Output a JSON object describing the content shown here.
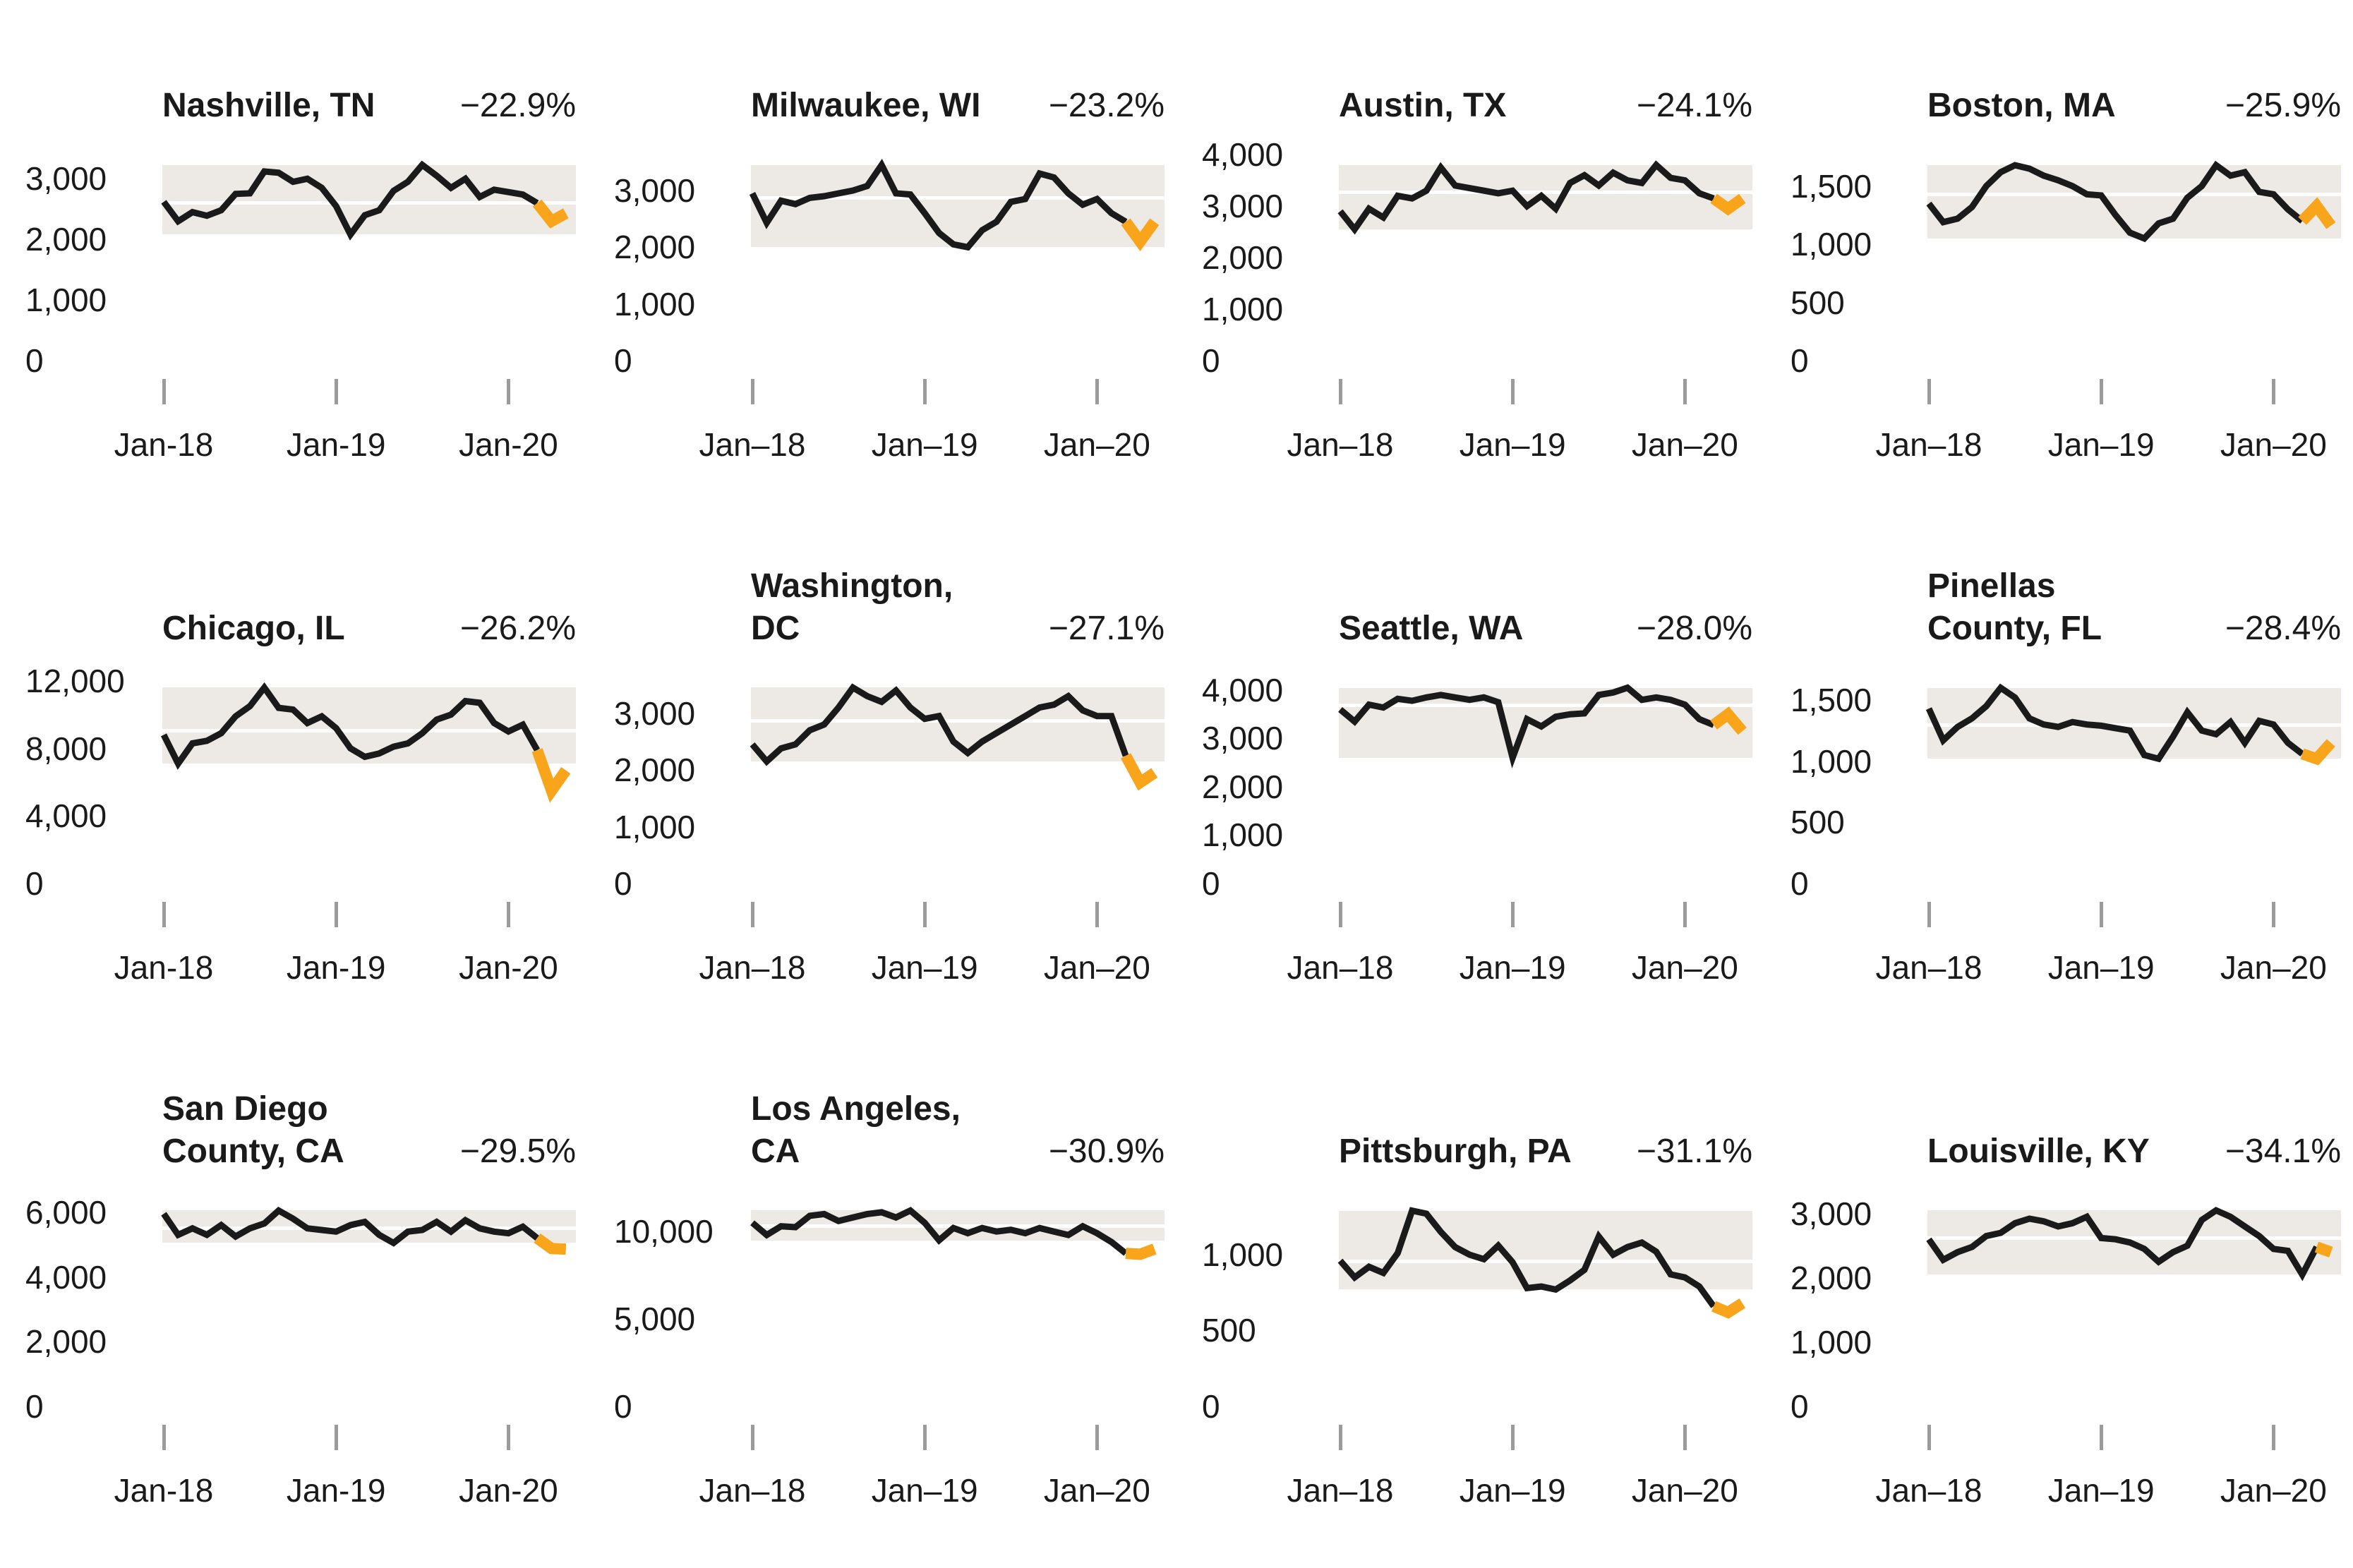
{
  "page": {
    "background": "#ffffff",
    "colors": {
      "line_black": "#1a1a1a",
      "highlight_orange": "#f9a51b",
      "range_band_gray": "#edeae5",
      "average_line_white": "#ffffff",
      "axis_tick_gray": "#9b9b9b",
      "text": "#1a1a1a"
    }
  },
  "chart_data": [
    {
      "type": "line",
      "title": "Nashville, TN",
      "title_display": "Nashville, TN",
      "change_label": "−22.9%",
      "x_start": "Jan-2018",
      "x_interval": "monthly",
      "x_tick_labels": [
        "Jan-18",
        "Jan-19",
        "Jan-20"
      ],
      "x_tick_indices": [
        0,
        12,
        24
      ],
      "values": [
        2620,
        2300,
        2450,
        2390,
        2480,
        2750,
        2760,
        3120,
        3100,
        2950,
        3000,
        2850,
        2550,
        2080,
        2400,
        2480,
        2800,
        2950,
        3230,
        3050,
        2850,
        3000,
        2700,
        2820,
        2780,
        2740,
        2600,
        2300,
        2430
      ],
      "highlight_from_index": 26,
      "band_min": 2080,
      "band_max": 3230,
      "baseline": 2610,
      "ylim": [
        0,
        3330
      ],
      "y_ticks": [
        {
          "value": 3000,
          "label": "3,000"
        },
        {
          "value": 2000,
          "label": "2,000"
        },
        {
          "value": 1000,
          "label": "1,000"
        },
        {
          "value": 0,
          "label": "0"
        }
      ]
    },
    {
      "type": "line",
      "title": "Milwaukee, WI",
      "title_display": "Milwaukee, WI",
      "change_label": "−23.2%",
      "x_start": "Jan-2018",
      "x_interval": "monthly",
      "x_tick_labels": [
        "Jan–18",
        "Jan–19",
        "Jan–20"
      ],
      "x_tick_indices": [
        0,
        12,
        24
      ],
      "values": [
        2950,
        2430,
        2820,
        2760,
        2870,
        2900,
        2950,
        3000,
        3080,
        3450,
        2950,
        2930,
        2600,
        2250,
        2050,
        2000,
        2300,
        2450,
        2800,
        2850,
        3300,
        3230,
        2950,
        2750,
        2850,
        2600,
        2450,
        2100,
        2450
      ],
      "highlight_from_index": 26,
      "band_min": 2000,
      "band_max": 3450,
      "baseline": 2870,
      "ylim": [
        0,
        3560
      ],
      "y_ticks": [
        {
          "value": 3000,
          "label": "3,000"
        },
        {
          "value": 2000,
          "label": "2,000"
        },
        {
          "value": 1000,
          "label": "1,000"
        },
        {
          "value": 0,
          "label": "0"
        }
      ]
    },
    {
      "type": "line",
      "title": "Austin, TX",
      "title_display": "Austin, TX",
      "change_label": "−24.1%",
      "x_start": "Jan-2018",
      "x_interval": "monthly",
      "x_tick_labels": [
        "Jan–18",
        "Jan–19",
        "Jan–20"
      ],
      "x_tick_indices": [
        0,
        12,
        24
      ],
      "values": [
        2900,
        2550,
        2950,
        2780,
        3200,
        3150,
        3300,
        3750,
        3400,
        3350,
        3300,
        3250,
        3300,
        3000,
        3200,
        2950,
        3450,
        3600,
        3400,
        3650,
        3500,
        3450,
        3800,
        3550,
        3500,
        3250,
        3150,
        2950,
        3150
      ],
      "highlight_from_index": 26,
      "band_min": 2550,
      "band_max": 3800,
      "baseline": 3280,
      "ylim": [
        0,
        3920
      ],
      "y_ticks": [
        {
          "value": 4000,
          "label": "4,000"
        },
        {
          "value": 3000,
          "label": "3,000"
        },
        {
          "value": 2000,
          "label": "2,000"
        },
        {
          "value": 1000,
          "label": "1,000"
        },
        {
          "value": 0,
          "label": "0"
        }
      ]
    },
    {
      "type": "line",
      "title": "Boston, MA",
      "title_display": "Boston, MA",
      "change_label": "−25.9%",
      "x_start": "Jan-2018",
      "x_interval": "monthly",
      "x_tick_labels": [
        "Jan–18",
        "Jan–19",
        "Jan–20"
      ],
      "x_tick_indices": [
        0,
        12,
        24
      ],
      "values": [
        1350,
        1190,
        1220,
        1320,
        1500,
        1620,
        1680,
        1650,
        1590,
        1550,
        1500,
        1430,
        1420,
        1250,
        1100,
        1050,
        1180,
        1220,
        1400,
        1500,
        1680,
        1590,
        1620,
        1450,
        1430,
        1300,
        1200,
        1330,
        1160
      ],
      "highlight_from_index": 26,
      "band_min": 1050,
      "band_max": 1680,
      "baseline": 1430,
      "ylim": [
        0,
        1735
      ],
      "y_ticks": [
        {
          "value": 1500,
          "label": "1,500"
        },
        {
          "value": 1000,
          "label": "1,000"
        },
        {
          "value": 500,
          "label": "500"
        },
        {
          "value": 0,
          "label": "0"
        }
      ]
    },
    {
      "type": "line",
      "title": "Chicago, IL",
      "title_display": "Chicago, IL",
      "change_label": "−26.2%",
      "x_start": "Jan-2018",
      "x_interval": "monthly",
      "x_tick_labels": [
        "Jan-18",
        "Jan-19",
        "Jan-20"
      ],
      "x_tick_indices": [
        0,
        12,
        24
      ],
      "values": [
        8800,
        7100,
        8300,
        8450,
        8900,
        9900,
        10500,
        11600,
        10400,
        10300,
        9500,
        9900,
        9200,
        8000,
        7500,
        7700,
        8100,
        8300,
        8900,
        9700,
        10000,
        10800,
        10700,
        9500,
        9000,
        9400,
        7900,
        5500,
        6700
      ],
      "highlight_from_index": 26,
      "band_min": 7100,
      "band_max": 11600,
      "baseline": 9050,
      "ylim": [
        0,
        11950
      ],
      "y_ticks": [
        {
          "value": 12000,
          "label": "12,000"
        },
        {
          "value": 8000,
          "label": "8,000"
        },
        {
          "value": 4000,
          "label": "4,000"
        },
        {
          "value": 0,
          "label": "0"
        }
      ]
    },
    {
      "type": "line",
      "title": "Washington, DC",
      "title_display": "Washington,\nDC",
      "change_label": "−27.1%",
      "x_start": "Jan-2018",
      "x_interval": "monthly",
      "x_tick_labels": [
        "Jan–18",
        "Jan–19",
        "Jan–20"
      ],
      "x_tick_indices": [
        0,
        12,
        24
      ],
      "values": [
        2450,
        2150,
        2380,
        2450,
        2700,
        2800,
        3100,
        3450,
        3300,
        3200,
        3400,
        3100,
        2900,
        2950,
        2500,
        2300,
        2500,
        2650,
        2800,
        2950,
        3100,
        3150,
        3300,
        3050,
        2950,
        2950,
        2250,
        1780,
        1950
      ],
      "highlight_from_index": 26,
      "band_min": 2150,
      "band_max": 3450,
      "baseline": 2870,
      "ylim": [
        0,
        3555
      ],
      "y_ticks": [
        {
          "value": 3000,
          "label": "3,000"
        },
        {
          "value": 2000,
          "label": "2,000"
        },
        {
          "value": 1000,
          "label": "1,000"
        },
        {
          "value": 0,
          "label": "0"
        }
      ]
    },
    {
      "type": "line",
      "title": "Seattle, WA",
      "title_display": "Seattle, WA",
      "change_label": "−28.0%",
      "x_start": "Jan-2018",
      "x_interval": "monthly",
      "x_tick_labels": [
        "Jan–18",
        "Jan–19",
        "Jan–20"
      ],
      "x_tick_indices": [
        0,
        12,
        24
      ],
      "values": [
        3600,
        3350,
        3700,
        3640,
        3820,
        3780,
        3850,
        3900,
        3850,
        3800,
        3850,
        3750,
        2600,
        3400,
        3250,
        3450,
        3500,
        3520,
        3900,
        3950,
        4050,
        3800,
        3850,
        3800,
        3700,
        3400,
        3280,
        3500,
        3150
      ],
      "highlight_from_index": 26,
      "band_min": 2600,
      "band_max": 4050,
      "baseline": 3700,
      "ylim": [
        0,
        4175
      ],
      "y_ticks": [
        {
          "value": 4000,
          "label": "4,000"
        },
        {
          "value": 3000,
          "label": "3,000"
        },
        {
          "value": 2000,
          "label": "2,000"
        },
        {
          "value": 1000,
          "label": "1,000"
        },
        {
          "value": 0,
          "label": "0"
        }
      ]
    },
    {
      "type": "line",
      "title": "Pinellas County, FL",
      "title_display": "Pinellas\nCounty, FL",
      "change_label": "−28.4%",
      "x_start": "Jan-2018",
      "x_interval": "monthly",
      "x_tick_labels": [
        "Jan–18",
        "Jan–19",
        "Jan–20"
      ],
      "x_tick_indices": [
        0,
        12,
        24
      ],
      "values": [
        1430,
        1170,
        1280,
        1350,
        1450,
        1600,
        1520,
        1350,
        1300,
        1280,
        1320,
        1300,
        1290,
        1270,
        1250,
        1050,
        1020,
        1200,
        1400,
        1250,
        1220,
        1320,
        1150,
        1330,
        1300,
        1150,
        1060,
        1020,
        1150
      ],
      "highlight_from_index": 26,
      "band_min": 1020,
      "band_max": 1600,
      "baseline": 1300,
      "ylim": [
        0,
        1650
      ],
      "y_ticks": [
        {
          "value": 1500,
          "label": "1,500"
        },
        {
          "value": 1000,
          "label": "1,000"
        },
        {
          "value": 500,
          "label": "500"
        },
        {
          "value": 0,
          "label": "0"
        }
      ]
    },
    {
      "type": "line",
      "title": "San Diego County, CA",
      "title_display": "San Diego\nCounty, CA",
      "change_label": "−29.5%",
      "x_start": "Jan-2018",
      "x_interval": "monthly",
      "x_tick_labels": [
        "Jan-18",
        "Jan-19",
        "Jan-20"
      ],
      "x_tick_indices": [
        0,
        12,
        24
      ],
      "values": [
        5950,
        5300,
        5500,
        5300,
        5600,
        5250,
        5500,
        5650,
        6050,
        5800,
        5500,
        5450,
        5400,
        5600,
        5700,
        5300,
        5050,
        5400,
        5450,
        5700,
        5400,
        5750,
        5500,
        5400,
        5350,
        5550,
        5200,
        4880,
        4860
      ],
      "highlight_from_index": 26,
      "band_min": 5050,
      "band_max": 6050,
      "baseline": 5520,
      "ylim": [
        0,
        6235
      ],
      "y_ticks": [
        {
          "value": 6000,
          "label": "6,000"
        },
        {
          "value": 4000,
          "label": "4,000"
        },
        {
          "value": 2000,
          "label": "2,000"
        },
        {
          "value": 0,
          "label": "0"
        }
      ]
    },
    {
      "type": "line",
      "title": "Los Angeles, CA",
      "title_display": "Los Angeles,\nCA",
      "change_label": "−30.9%",
      "x_start": "Jan-2018",
      "x_interval": "monthly",
      "x_tick_labels": [
        "Jan–18",
        "Jan–19",
        "Jan–20"
      ],
      "x_tick_indices": [
        0,
        12,
        24
      ],
      "values": [
        10500,
        9800,
        10300,
        10250,
        10900,
        11000,
        10600,
        10800,
        11000,
        11100,
        10800,
        11200,
        10500,
        9500,
        10200,
        9900,
        10200,
        10000,
        10100,
        9900,
        10200,
        10000,
        9800,
        10300,
        9900,
        9400,
        8750,
        8700,
        9000
      ],
      "highlight_from_index": 26,
      "band_min": 9500,
      "band_max": 11200,
      "baseline": 10330,
      "ylim": [
        0,
        11540
      ],
      "y_ticks": [
        {
          "value": 10000,
          "label": "10,000"
        },
        {
          "value": 5000,
          "label": "5,000"
        },
        {
          "value": 0,
          "label": "0"
        }
      ]
    },
    {
      "type": "line",
      "title": "Pittsburgh, PA",
      "title_display": "Pittsburgh, PA",
      "change_label": "−31.1%",
      "x_start": "Jan-2018",
      "x_interval": "monthly",
      "x_tick_labels": [
        "Jan–18",
        "Jan–19",
        "Jan–20"
      ],
      "x_tick_indices": [
        0,
        12,
        24
      ],
      "values": [
        960,
        850,
        920,
        880,
        1010,
        1290,
        1270,
        1150,
        1050,
        1000,
        970,
        1060,
        950,
        780,
        790,
        770,
        830,
        900,
        1120,
        1000,
        1050,
        1080,
        1020,
        870,
        850,
        790,
        660,
        620,
        680
      ],
      "highlight_from_index": 26,
      "band_min": 770,
      "band_max": 1290,
      "baseline": 960,
      "ylim": [
        0,
        1330
      ],
      "y_ticks": [
        {
          "value": 1000,
          "label": "1,000"
        },
        {
          "value": 500,
          "label": "500"
        },
        {
          "value": 0,
          "label": "0"
        }
      ]
    },
    {
      "type": "line",
      "title": "Louisville, KY",
      "title_display": "Louisville, KY",
      "change_label": "−34.1%",
      "x_start": "Jan-2018",
      "x_interval": "monthly",
      "x_tick_labels": [
        "Jan–18",
        "Jan–19",
        "Jan–20"
      ],
      "x_tick_indices": [
        0,
        12,
        24
      ],
      "values": [
        2600,
        2280,
        2400,
        2480,
        2650,
        2700,
        2850,
        2920,
        2880,
        2800,
        2850,
        2950,
        2620,
        2600,
        2550,
        2450,
        2250,
        2400,
        2500,
        2900,
        3050,
        2950,
        2800,
        2650,
        2450,
        2420,
        2050,
        2480,
        2400
      ],
      "highlight_from_index": 27,
      "band_min": 2050,
      "band_max": 3050,
      "baseline": 2620,
      "ylim": [
        0,
        3140
      ],
      "y_ticks": [
        {
          "value": 3000,
          "label": "3,000"
        },
        {
          "value": 2000,
          "label": "2,000"
        },
        {
          "value": 1000,
          "label": "1,000"
        },
        {
          "value": 0,
          "label": "0"
        }
      ]
    }
  ]
}
